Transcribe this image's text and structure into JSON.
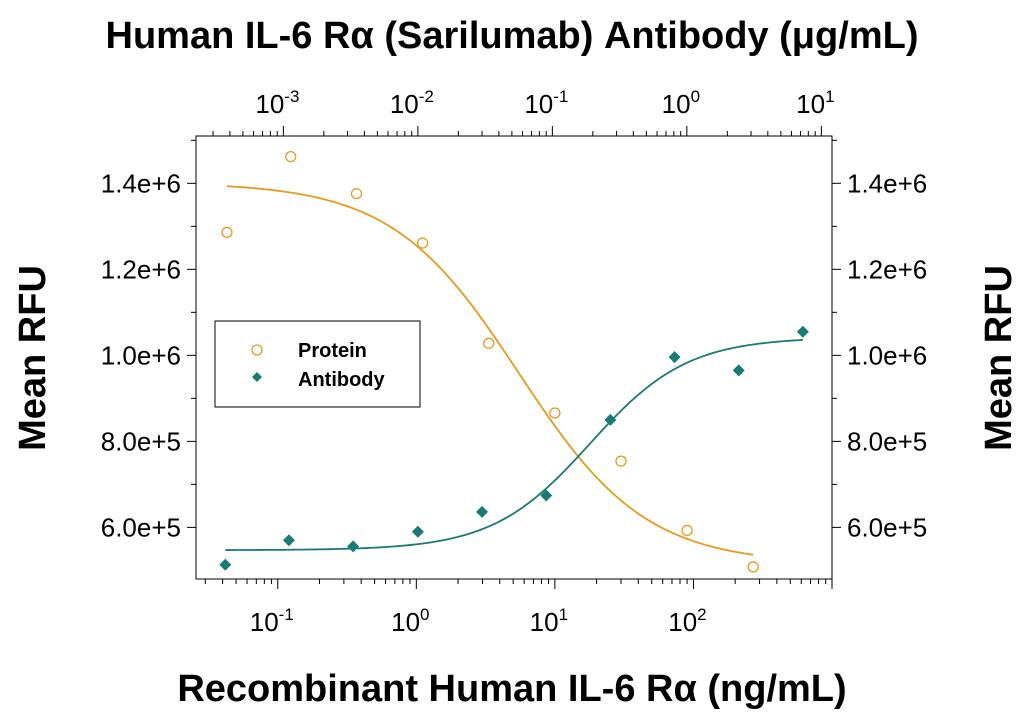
{
  "chart_data": {
    "type": "scatter",
    "title_top": "Human IL-6 Rα (Sarilumab) Antibody (μg/mL)",
    "xlabel": "Recombinant Human IL-6 Rα (ng/mL)",
    "ylabel_left": "Mean RFU",
    "ylabel_right": "Mean RFU",
    "x_bottom": {
      "scale": "log",
      "range": [
        0.0257,
        1000
      ],
      "ticks": [
        {
          "value": 0.1,
          "base": "10",
          "exp": "-1"
        },
        {
          "value": 1,
          "base": "10",
          "exp": "0"
        },
        {
          "value": 10,
          "base": "10",
          "exp": "1"
        },
        {
          "value": 100,
          "base": "10",
          "exp": "2"
        }
      ]
    },
    "x_top": {
      "scale": "log",
      "range": [
        0.000224,
        12
      ],
      "ticks": [
        {
          "value": 0.001,
          "base": "10",
          "exp": "-3"
        },
        {
          "value": 0.01,
          "base": "10",
          "exp": "-2"
        },
        {
          "value": 0.1,
          "base": "10",
          "exp": "-1"
        },
        {
          "value": 1,
          "base": "10",
          "exp": "0"
        },
        {
          "value": 10,
          "base": "10",
          "exp": "1"
        }
      ]
    },
    "y_left": {
      "range": [
        480000,
        1510000
      ],
      "ticks": [
        {
          "value": 600000,
          "label": "6.0e+5"
        },
        {
          "value": 800000,
          "label": "8.0e+5"
        },
        {
          "value": 1000000,
          "label": "1.0e+6"
        },
        {
          "value": 1200000,
          "label": "1.2e+6"
        },
        {
          "value": 1400000,
          "label": "1.4e+6"
        }
      ]
    },
    "y_right": {
      "range": [
        480000,
        1510000
      ],
      "ticks": [
        {
          "value": 600000,
          "label": "6.0e+5"
        },
        {
          "value": 800000,
          "label": "8.0e+5"
        },
        {
          "value": 1000000,
          "label": "1.0e+6"
        },
        {
          "value": 1200000,
          "label": "1.2e+6"
        },
        {
          "value": 1400000,
          "label": "1.4e+6"
        }
      ]
    },
    "legend": {
      "placement": "center-left",
      "entries": [
        {
          "label": "Protein",
          "color": "#E69A1E",
          "marker": "open-circle"
        },
        {
          "label": "Antibody",
          "color": "#1A7A74",
          "marker": "filled-diamond"
        }
      ]
    },
    "series": [
      {
        "name": "Protein",
        "axis": "bottom",
        "color": "#E69A1E",
        "marker": "open-circle",
        "points": [
          {
            "x": 0.043,
            "y": 1286000
          },
          {
            "x": 0.124,
            "y": 1462000
          },
          {
            "x": 0.37,
            "y": 1376000
          },
          {
            "x": 1.11,
            "y": 1261000
          },
          {
            "x": 3.33,
            "y": 1028000
          },
          {
            "x": 10.0,
            "y": 866000
          },
          {
            "x": 30.0,
            "y": 754000
          },
          {
            "x": 90.0,
            "y": 593000
          },
          {
            "x": 270.0,
            "y": 508000
          }
        ],
        "fit": {
          "model": "4PL",
          "bottom": 515000,
          "top": 1402000,
          "ec50": 5.5,
          "hill": -0.95,
          "xmin": 0.043,
          "xmax": 270
        }
      },
      {
        "name": "Antibody",
        "axis": "top",
        "color": "#1A7A74",
        "marker": "filled-diamond",
        "points": [
          {
            "x": 0.00037,
            "y": 513000
          },
          {
            "x": 0.0011,
            "y": 570000
          },
          {
            "x": 0.0033,
            "y": 556000
          },
          {
            "x": 0.01,
            "y": 590000
          },
          {
            "x": 0.03,
            "y": 636000
          },
          {
            "x": 0.09,
            "y": 674000
          },
          {
            "x": 0.27,
            "y": 850000
          },
          {
            "x": 0.81,
            "y": 996000
          },
          {
            "x": 2.43,
            "y": 965000
          },
          {
            "x": 7.29,
            "y": 1055000
          }
        ],
        "fit": {
          "model": "4PL",
          "bottom": 547000,
          "top": 1042000,
          "ec50": 0.19,
          "hill": 1.2,
          "xmin": 0.00037,
          "xmax": 7.29
        }
      }
    ],
    "grid": false
  }
}
